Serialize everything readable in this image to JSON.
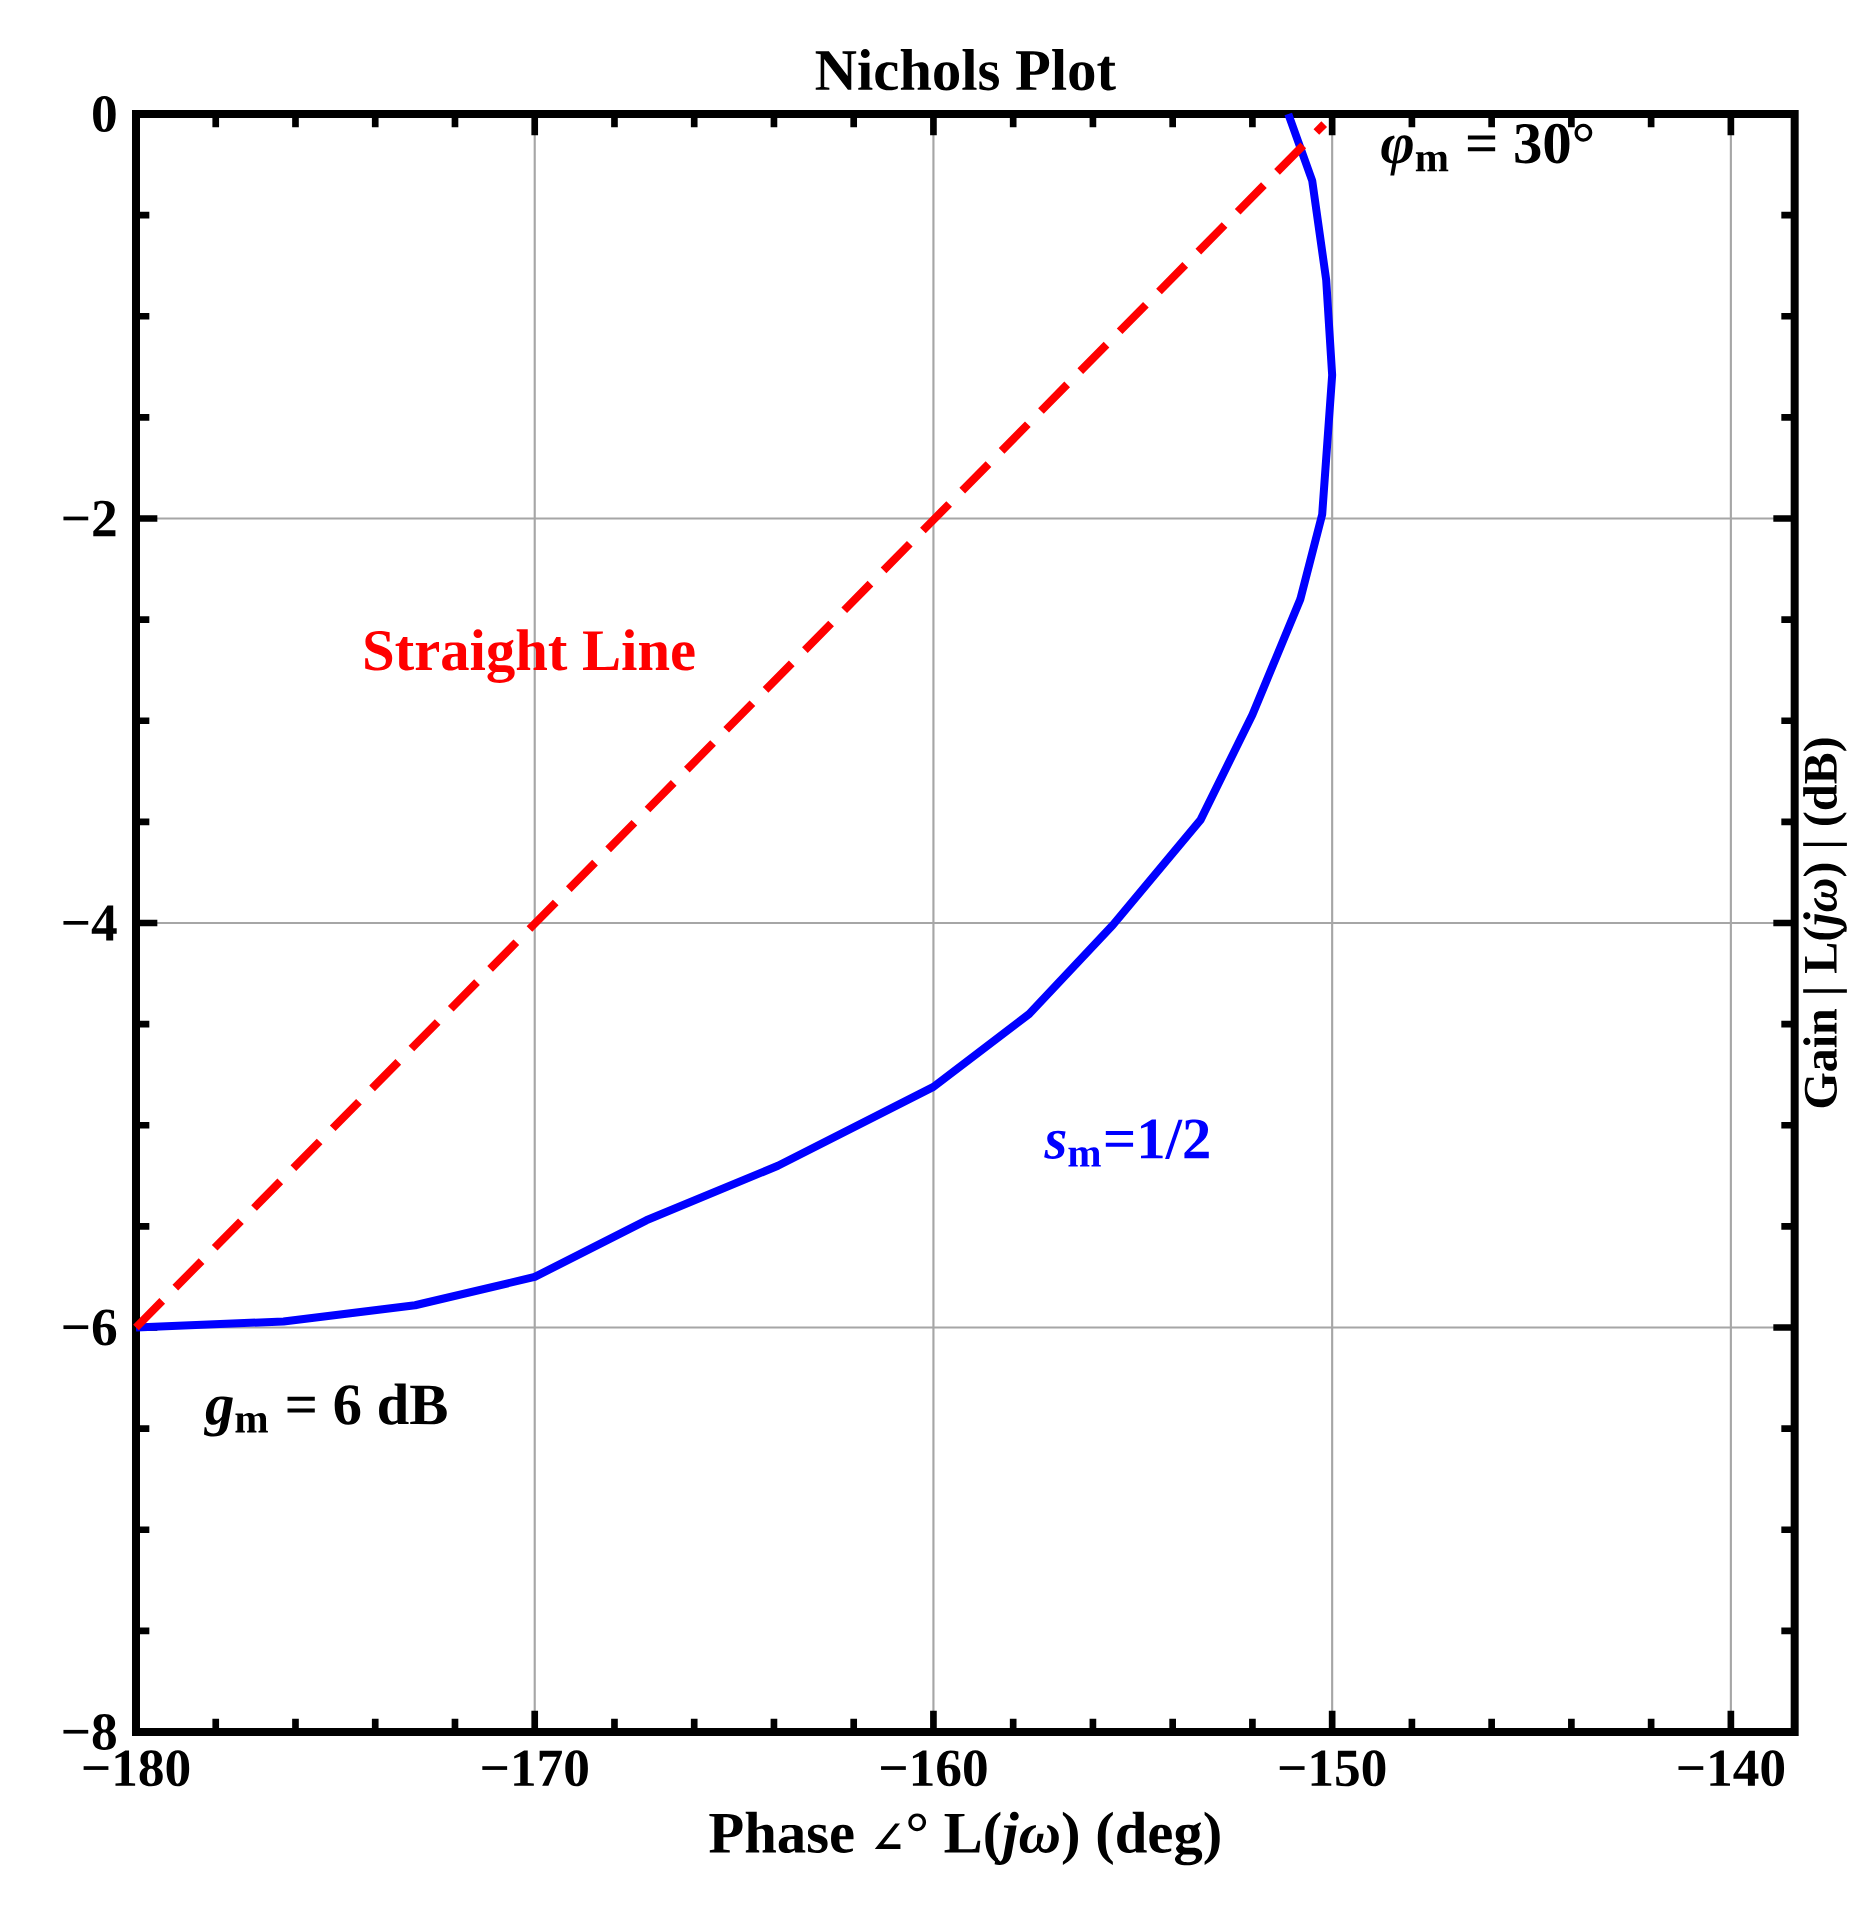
{
  "chart_data": {
    "type": "line",
    "title": "Nichols Plot",
    "xlabel": "Phase ∠° L(*jω*)  (deg)",
    "ylabel": "Gain | L(*jω*) | (dB)",
    "xlim": [
      -180,
      -138.4
    ],
    "ylim": [
      -8,
      0
    ],
    "xticks": [
      {
        "value": -180,
        "label": "−180"
      },
      {
        "value": -170,
        "label": "−170"
      },
      {
        "value": -160,
        "label": "−160"
      },
      {
        "value": -150,
        "label": "−150"
      },
      {
        "value": -140,
        "label": "−140"
      }
    ],
    "yticks": [
      {
        "value": -8,
        "label": "−8"
      },
      {
        "value": -6,
        "label": "−6"
      },
      {
        "value": -4,
        "label": "−4"
      },
      {
        "value": -2,
        "label": "−2"
      },
      {
        "value": 0,
        "label": "0"
      }
    ],
    "grid": true,
    "series": [
      {
        "color": "#0000ff",
        "line_style": "solid",
        "x": [
          -180,
          -176.3,
          -173.0,
          -170.0,
          -167.2,
          -163.9,
          -160.0,
          -157.6,
          -155.5,
          -153.3,
          -152.0,
          -150.8,
          -150.25,
          -150.0,
          -150.15,
          -150.5,
          -151.1
        ],
        "values": [
          -6.0,
          -5.97,
          -5.89,
          -5.75,
          -5.47,
          -5.2,
          -4.81,
          -4.45,
          -4.01,
          -3.49,
          -2.97,
          -2.4,
          -1.98,
          -1.29,
          -0.82,
          -0.33,
          0
        ]
      },
      {
        "color": "#ff0000",
        "line_style": "dashed",
        "x": [
          -180,
          -150.2
        ],
        "values": [
          -6.0,
          -0.05
        ]
      }
    ],
    "annotations": [
      "*φ*$_{m}$ = 30°",
      "Straight Line",
      "*s*$_{m}$=1/2",
      "*g*$_{m}$ = 6 dB"
    ]
  }
}
